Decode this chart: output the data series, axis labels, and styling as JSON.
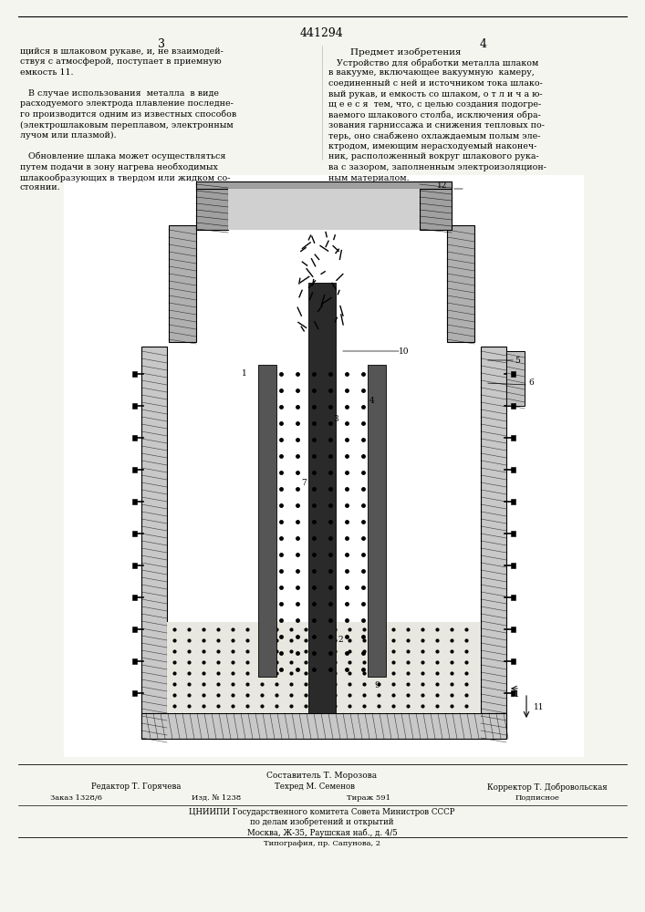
{
  "page_width": 7.07,
  "page_height": 10.0,
  "bg_color": "#f5f5f0",
  "patent_number": "441294",
  "page_col_left": "3",
  "page_col_right": "4",
  "section_title": "Предмет изобретения",
  "left_text_lines": [
    "щийся в шлаковом рукаве, и, не взаимодей-",
    "ствуя с атмосферой, поступает в приемную",
    "емкость 11.",
    "",
    "   В случае использования  металла  в виде",
    "расходуемого электрода плавление последне-",
    "го производится одним из известных способов",
    "(электрошлаковым переплавом, электронным",
    "лучом или плазмой).",
    "",
    "   Обновление шлака может осуществляться",
    "путем подачи в зону нагрева необходимых",
    "шлакообразующих в твердом или жидком со-",
    "стоянии."
  ],
  "right_text_lines": [
    "   Устройство для обработки металла шлаком",
    "в вакууме, включающее вакуумную  камеру,",
    "соединенный с ней и источником тока шлако-",
    "вый рукав, и емкость со шлаком, о т л и ч а ю-",
    "щ е е с я  тем, что, с целью создания подогре-",
    "ваемого шлакового столба, исключения обра-",
    "зования гарниссажа и снижения тепловых по-",
    "терь, оно снабжено охлаждаемым полым эле-",
    "ктродом, имеющим нерасходуемый наконеч-",
    "ник, расположенный вокруг шлакового рука-",
    "ва с зазором, заполненным электроизоляцион-",
    "ным материалом."
  ],
  "footer_composer": "Составитель Т. Морозова",
  "footer_editor": "Редактор Т. Горячева",
  "footer_tech": "Техред М. Семенов",
  "footer_corrector": "Корректор Т. Добровольская",
  "footer_order": "Заказ 1328/6",
  "footer_pub": "Изд. № 1238",
  "footer_tirazh": "Тираж 591",
  "footer_podpisnoe": "Подписное",
  "footer_tsniipi": "ЦНИИПИ Государственного комитета Совета Министров СССР",
  "footer_delo": "по делам изобретений и открытий",
  "footer_moscow": "Москва, Ж-35, Раушская наб., д. 4/5",
  "footer_tipografia": "Типография, пр. Сапунова, 2"
}
